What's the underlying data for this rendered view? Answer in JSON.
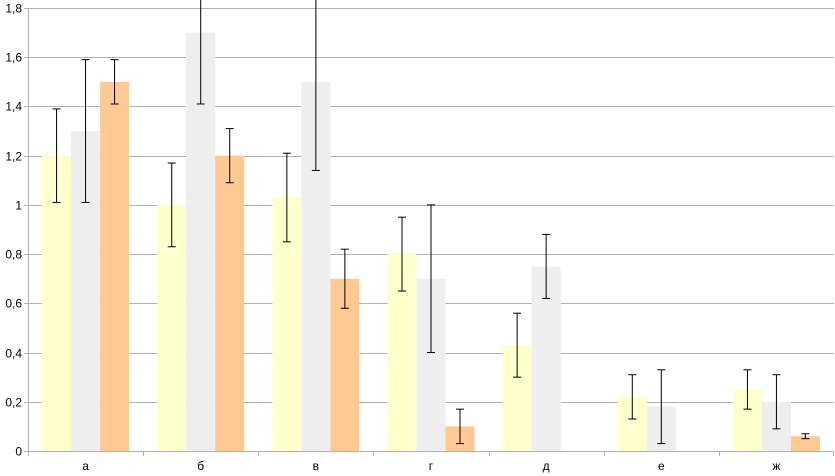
{
  "chart_data": {
    "type": "bar",
    "categories": [
      "а",
      "б",
      "в",
      "г",
      "д",
      "е",
      "ж"
    ],
    "series": [
      {
        "values": [
          1.2,
          1.0,
          1.03,
          0.8,
          0.43,
          0.22,
          0.25
        ],
        "errors": [
          0.19,
          0.17,
          0.18,
          0.15,
          0.13,
          0.09,
          0.08
        ],
        "color": "#ffffcc"
      },
      {
        "values": [
          1.3,
          1.7,
          1.5,
          0.7,
          0.75,
          0.18,
          0.2
        ],
        "errors": [
          0.29,
          0.29,
          0.36,
          0.3,
          0.13,
          0.15,
          0.11
        ],
        "color": "#eeeeee"
      },
      {
        "values": [
          1.5,
          1.2,
          0.7,
          0.1,
          0.0,
          0.0,
          0.06
        ],
        "errors": [
          0.09,
          0.11,
          0.12,
          0.07,
          0.0,
          0.0,
          0.01
        ],
        "color": "#ffc994"
      }
    ],
    "ylim": [
      0,
      1.8
    ],
    "yticks": [
      "0",
      "0,2",
      "0,4",
      "0,6",
      "0,8",
      "1",
      "1,2",
      "1,4",
      "1,6",
      "1,8"
    ],
    "title": "",
    "xlabel": "",
    "ylabel": "",
    "grid": true,
    "legend": "none"
  },
  "colors": {
    "grid": "#b3b3b3",
    "axis": "#b3b3b3",
    "error_bar": "#000000"
  }
}
